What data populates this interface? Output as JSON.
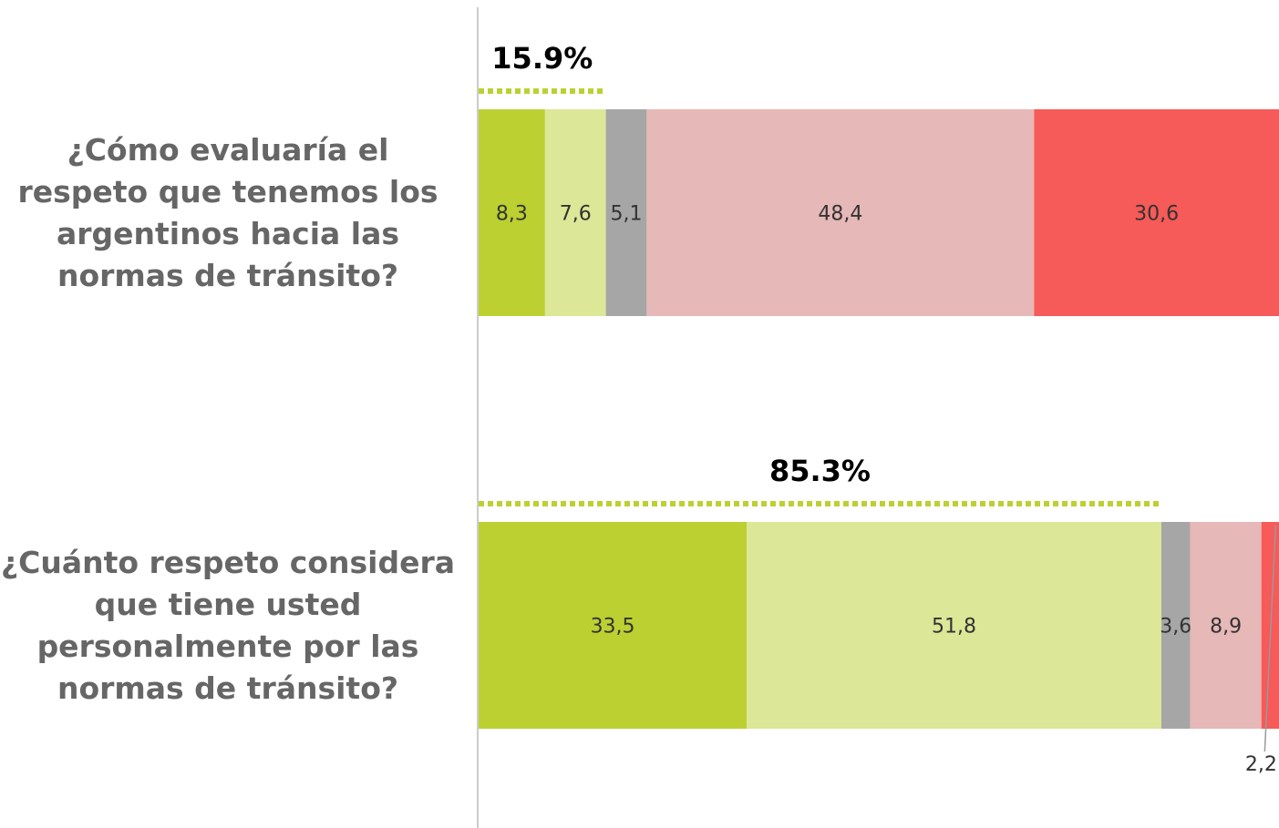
{
  "chart_data": {
    "type": "stacked-bar-horizontal",
    "categories": [
      "¿Cómo evaluaría el respeto que tenemos los argentinos hacia las normas de tránsito?",
      "¿Cuánto respeto considera que tiene usted personalmente por las normas de tránsito?"
    ],
    "series": [
      {
        "color": "#bcd032",
        "values": [
          8.3,
          33.5
        ],
        "value_labels": [
          "8,3",
          "33,5"
        ]
      },
      {
        "color": "#dce797",
        "values": [
          7.6,
          51.8
        ],
        "value_labels": [
          "7,6",
          "51,8"
        ]
      },
      {
        "color": "#a6a6a6",
        "values": [
          5.1,
          3.6
        ],
        "value_labels": [
          "5,1",
          "3,6"
        ]
      },
      {
        "color": "#e6b8b7",
        "values": [
          48.4,
          8.9
        ],
        "value_labels": [
          "48,4",
          "8,9"
        ]
      },
      {
        "color": "#f65a59",
        "values": [
          30.6,
          2.2
        ],
        "value_labels": [
          "30,6",
          "2,2"
        ]
      }
    ],
    "annotations": [
      {
        "value": 15.9,
        "label": "15.9%"
      },
      {
        "value": 85.3,
        "label": "85.3%"
      }
    ],
    "annotation_color": "#bcd032",
    "xlim": [
      0,
      100
    ]
  }
}
